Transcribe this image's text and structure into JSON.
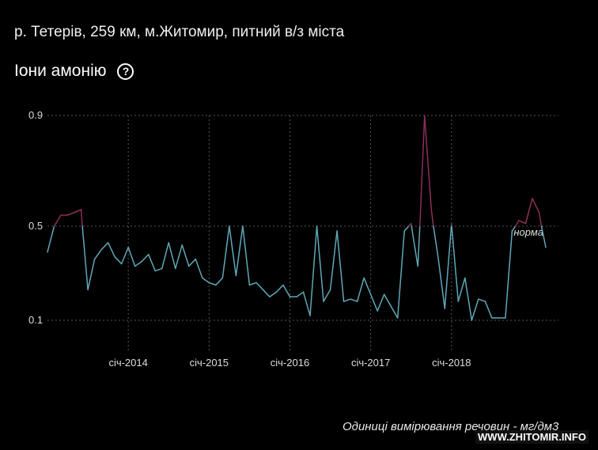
{
  "header": {
    "location": "р. Тетерів, 259 км, м.Житомир, питний в/з міста",
    "title": "Іони амонію",
    "help_icon": "question-circle-icon"
  },
  "footer": {
    "units": "Одиниці вимірювання речовин - мг/дм3",
    "watermark": "WWW.ZHITOMIR.INFO"
  },
  "colors": {
    "normal_line": "#5fa8b8",
    "exceed_line": "#8a2f5a",
    "grid": "#555555"
  },
  "chart_data": {
    "type": "line",
    "title": "",
    "xlabel": "",
    "ylabel": "",
    "ylim": [
      0.0,
      1.0
    ],
    "yticks": [
      0.1,
      0.5,
      0.9
    ],
    "xticks": [
      {
        "label": "січ-2014",
        "x": 12
      },
      {
        "label": "січ-2015",
        "x": 24
      },
      {
        "label": "січ-2016",
        "x": 36
      },
      {
        "label": "січ-2017",
        "x": 48
      },
      {
        "label": "січ-2018",
        "x": 60
      }
    ],
    "norm": {
      "value": 0.5,
      "label": "норма"
    },
    "x_start": 0,
    "values": [
      0.39,
      0.5,
      0.54,
      0.54,
      0.55,
      0.56,
      0.23,
      0.36,
      0.4,
      0.43,
      0.37,
      0.34,
      0.41,
      0.33,
      0.35,
      0.38,
      0.31,
      0.32,
      0.43,
      0.32,
      0.42,
      0.33,
      0.36,
      0.28,
      0.26,
      0.25,
      0.28,
      0.5,
      0.29,
      0.5,
      0.25,
      0.26,
      0.23,
      0.2,
      0.22,
      0.25,
      0.2,
      0.2,
      0.22,
      0.12,
      0.5,
      0.18,
      0.23,
      0.48,
      0.18,
      0.19,
      0.18,
      0.28,
      0.21,
      0.14,
      0.21,
      0.16,
      0.11,
      0.48,
      0.51,
      0.33,
      0.9,
      0.56,
      0.37,
      0.15,
      0.51,
      0.18,
      0.28,
      0.1,
      0.19,
      0.18,
      0.11,
      0.11,
      0.11,
      0.48,
      0.52,
      0.51,
      0.6,
      0.55,
      0.41
    ],
    "grid": true
  }
}
